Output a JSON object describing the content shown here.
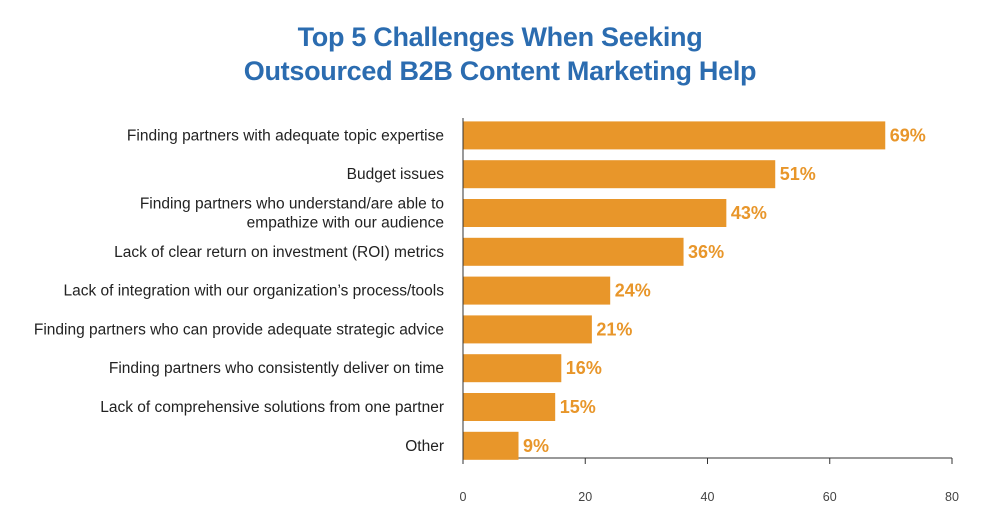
{
  "chart_data": {
    "type": "bar",
    "orientation": "horizontal",
    "title_lines": [
      "Top 5 Challenges When Seeking",
      "Outsourced B2B Content Marketing Help"
    ],
    "categories": [
      [
        "Finding partners with adequate topic expertise"
      ],
      [
        "Budget issues"
      ],
      [
        "Finding partners who understand/are able to",
        "empathize with our audience"
      ],
      [
        "Lack of clear return on investment (ROI) metrics"
      ],
      [
        "Lack of integration with our organization’s process/tools"
      ],
      [
        "Finding partners who can provide adequate strategic advice"
      ],
      [
        "Finding partners who consistently deliver on time"
      ],
      [
        "Lack of comprehensive solutions from one partner"
      ],
      [
        "Other"
      ]
    ],
    "values": [
      69,
      51,
      43,
      36,
      24,
      21,
      16,
      15,
      9
    ],
    "value_labels": [
      "69%",
      "51%",
      "43%",
      "36%",
      "24%",
      "21%",
      "16%",
      "15%",
      "9%"
    ],
    "xlim": [
      0,
      80
    ],
    "x_ticks": [
      0,
      20,
      40,
      60,
      80
    ],
    "grid": false,
    "legend": "none",
    "bar_color": "#e8962a",
    "title_color": "#2b6cb0"
  }
}
